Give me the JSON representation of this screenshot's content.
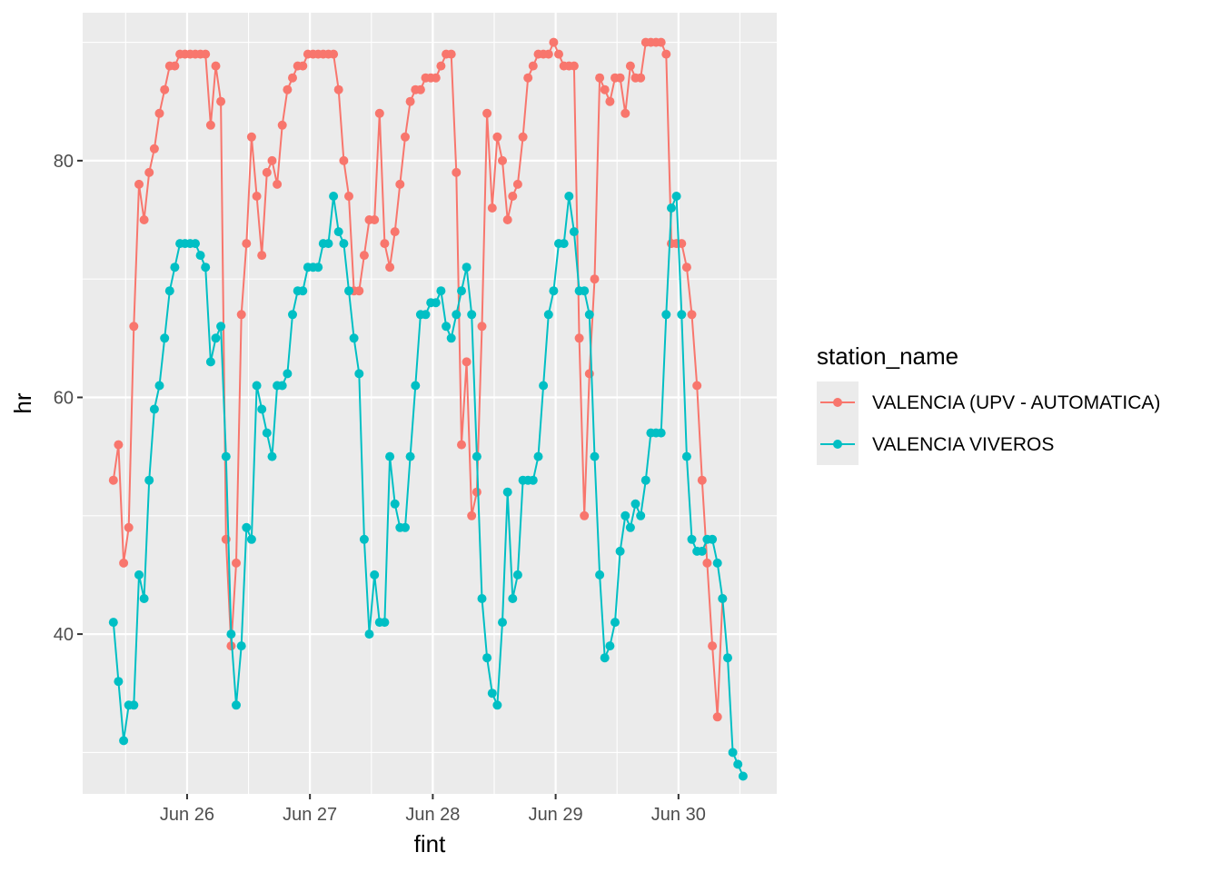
{
  "chart_data": {
    "type": "line",
    "xlabel": "fint",
    "ylabel": "hr",
    "x_unit": "day (June, hourly observations)",
    "x_ticks": [
      26,
      27,
      28,
      29,
      30
    ],
    "x_tick_labels": [
      "Jun 26",
      "Jun 27",
      "Jun 28",
      "Jun 29",
      "Jun 30"
    ],
    "xlim": [
      25.15,
      30.8
    ],
    "y_ticks": [
      40,
      60,
      80
    ],
    "ylim": [
      26.5,
      92.5
    ],
    "grid": true,
    "legend": {
      "title": "station_name",
      "position": "right"
    },
    "x_start": 25.4,
    "x_step": 0.04167,
    "series": [
      {
        "name": "VALENCIA (UPV - AUTOMATICA)",
        "color": "#F8766D",
        "values": [
          53,
          56,
          46,
          49,
          66,
          78,
          75,
          79,
          81,
          84,
          86,
          88,
          88,
          89,
          89,
          89,
          89,
          89,
          89,
          83,
          88,
          85,
          48,
          39,
          46,
          67,
          73,
          82,
          77,
          72,
          79,
          80,
          78,
          83,
          86,
          87,
          88,
          88,
          89,
          89,
          89,
          89,
          89,
          89,
          86,
          80,
          77,
          69,
          69,
          72,
          75,
          75,
          84,
          73,
          71,
          74,
          78,
          82,
          85,
          86,
          86,
          87,
          87,
          87,
          88,
          89,
          89,
          79,
          56,
          63,
          50,
          52,
          66,
          84,
          76,
          82,
          80,
          75,
          77,
          78,
          82,
          87,
          88,
          89,
          89,
          89,
          90,
          89,
          88,
          88,
          88,
          65,
          50,
          62,
          70,
          87,
          86,
          85,
          87,
          87,
          84,
          88,
          87,
          87,
          90,
          90,
          90,
          90,
          89,
          73,
          73,
          73,
          71,
          67,
          61,
          53,
          46,
          39,
          33,
          43
        ]
      },
      {
        "name": "VALENCIA VIVEROS",
        "color": "#00BFC4",
        "values": [
          41,
          36,
          31,
          34,
          34,
          45,
          43,
          53,
          59,
          61,
          65,
          69,
          71,
          73,
          73,
          73,
          73,
          72,
          71,
          63,
          65,
          66,
          55,
          40,
          34,
          39,
          49,
          48,
          61,
          59,
          57,
          55,
          61,
          61,
          62,
          67,
          69,
          69,
          71,
          71,
          71,
          73,
          73,
          77,
          74,
          73,
          69,
          65,
          62,
          48,
          40,
          45,
          41,
          41,
          55,
          51,
          49,
          49,
          55,
          61,
          67,
          67,
          68,
          68,
          69,
          66,
          65,
          67,
          69,
          71,
          67,
          55,
          43,
          38,
          35,
          34,
          41,
          52,
          43,
          45,
          53,
          53,
          53,
          55,
          61,
          67,
          69,
          73,
          73,
          77,
          74,
          69,
          69,
          67,
          55,
          45,
          38,
          39,
          41,
          47,
          50,
          49,
          51,
          50,
          53,
          57,
          57,
          57,
          67,
          76,
          77,
          67,
          55,
          48,
          47,
          47,
          48,
          48,
          46,
          43,
          38,
          30,
          29,
          28
        ]
      }
    ]
  }
}
